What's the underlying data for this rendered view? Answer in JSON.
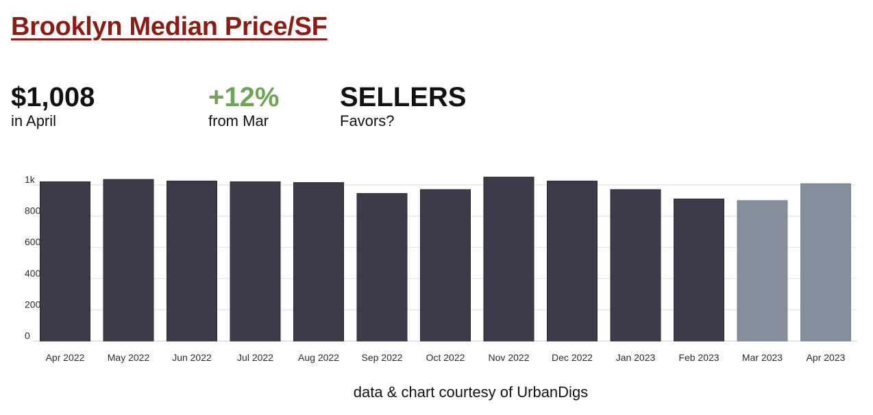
{
  "header": {
    "title": "Brooklyn Median Price/SF"
  },
  "stats": {
    "price_value": "$1,008",
    "price_label": "in April",
    "change_value": "+12%",
    "change_label": "from Mar",
    "favor_value": "SELLERS",
    "favor_label": "Favors?"
  },
  "colors": {
    "title": "#8b1c13",
    "change_positive": "#6ea358",
    "bar_primary": "#3d3b4a",
    "bar_recent": "#848f9b"
  },
  "chart_data": {
    "type": "bar",
    "categories": [
      "Apr 2022",
      "May 2022",
      "Jun 2022",
      "Jul 2022",
      "Aug 2022",
      "Sep 2022",
      "Oct 2022",
      "Nov 2022",
      "Dec 2022",
      "Jan 2023",
      "Feb 2023",
      "Mar 2023",
      "Apr 2023"
    ],
    "values": [
      1020,
      1035,
      1025,
      1020,
      1015,
      945,
      970,
      1050,
      1025,
      970,
      910,
      900,
      1008
    ],
    "highlighted": [
      "Mar 2023",
      "Apr 2023"
    ],
    "y_ticks": [
      "0",
      "200",
      "400",
      "600",
      "800",
      "1k"
    ],
    "ylim": [
      0,
      1050
    ],
    "grid": true,
    "xlabel": "",
    "ylabel": ""
  },
  "footer": {
    "credit": "data & chart courtesy of UrbanDigs"
  }
}
